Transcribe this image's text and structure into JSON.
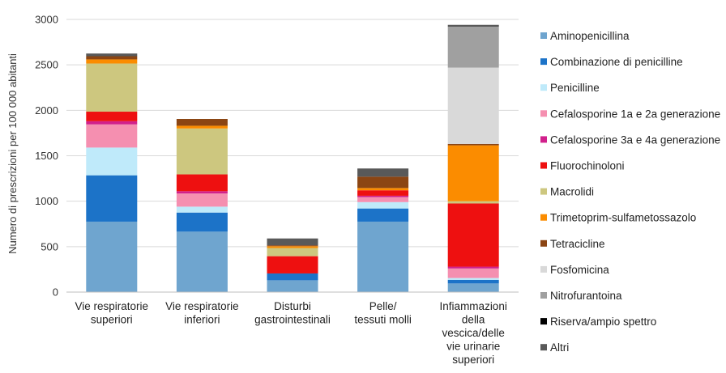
{
  "chart_data": {
    "type": "bar",
    "stacked": true,
    "title": "",
    "xlabel": "",
    "ylabel": "Numero di prescrizioni per 100 000 abitanti",
    "ylim": [
      0,
      3000
    ],
    "yticks": [
      0,
      500,
      1000,
      1500,
      2000,
      2500,
      3000
    ],
    "grid": true,
    "legend_position": "right",
    "categories": [
      [
        "Vie respiratorie",
        "superiori"
      ],
      [
        "Vie respiratorie",
        "inferiori"
      ],
      [
        "Disturbi",
        "gastrointestinali"
      ],
      [
        "Pelle/",
        "tessuti molli"
      ],
      [
        "Infiammazioni",
        "della",
        "vescica/delle",
        "vie urinarie",
        "superiori"
      ]
    ],
    "series": [
      {
        "name": "Aminopenicillina",
        "color": "#6fa5cf",
        "values": [
          775,
          665,
          130,
          775,
          95
        ]
      },
      {
        "name": "Combinazione di penicilline",
        "color": "#1c73c8",
        "values": [
          510,
          210,
          75,
          145,
          40
        ]
      },
      {
        "name": "Penicilline",
        "color": "#bfeafa",
        "values": [
          305,
          65,
          0,
          70,
          20
        ]
      },
      {
        "name": "Cefalosporine 1a e 2a generazione",
        "color": "#f58fb0",
        "values": [
          255,
          145,
          0,
          55,
          105
        ]
      },
      {
        "name": "Cefalosporine  3a e 4a generazione",
        "color": "#d1208c",
        "values": [
          35,
          25,
          0,
          15,
          20
        ]
      },
      {
        "name": "Fluorochinoloni",
        "color": "#ee1010",
        "values": [
          105,
          185,
          190,
          60,
          695
        ]
      },
      {
        "name": "Macrolidi",
        "color": "#cdc77f",
        "values": [
          530,
          505,
          90,
          0,
          25
        ]
      },
      {
        "name": "Trimetoprim-sulfametossazolo",
        "color": "#fb8c00",
        "values": [
          45,
          30,
          20,
          25,
          615
        ]
      },
      {
        "name": "Tetracicline",
        "color": "#8b4513",
        "values": [
          35,
          75,
          10,
          125,
          15
        ]
      },
      {
        "name": "Fosfomicina",
        "color": "#d9d9d9",
        "values": [
          0,
          0,
          0,
          0,
          840
        ]
      },
      {
        "name": "Nitrofurantoina",
        "color": "#a0a0a0",
        "values": [
          0,
          0,
          0,
          0,
          450
        ]
      },
      {
        "name": "Riserva/ampio spettro",
        "color": "#000000",
        "values": [
          0,
          0,
          0,
          0,
          0
        ]
      },
      {
        "name": "Altri",
        "color": "#595959",
        "values": [
          30,
          0,
          75,
          90,
          20
        ]
      }
    ]
  }
}
